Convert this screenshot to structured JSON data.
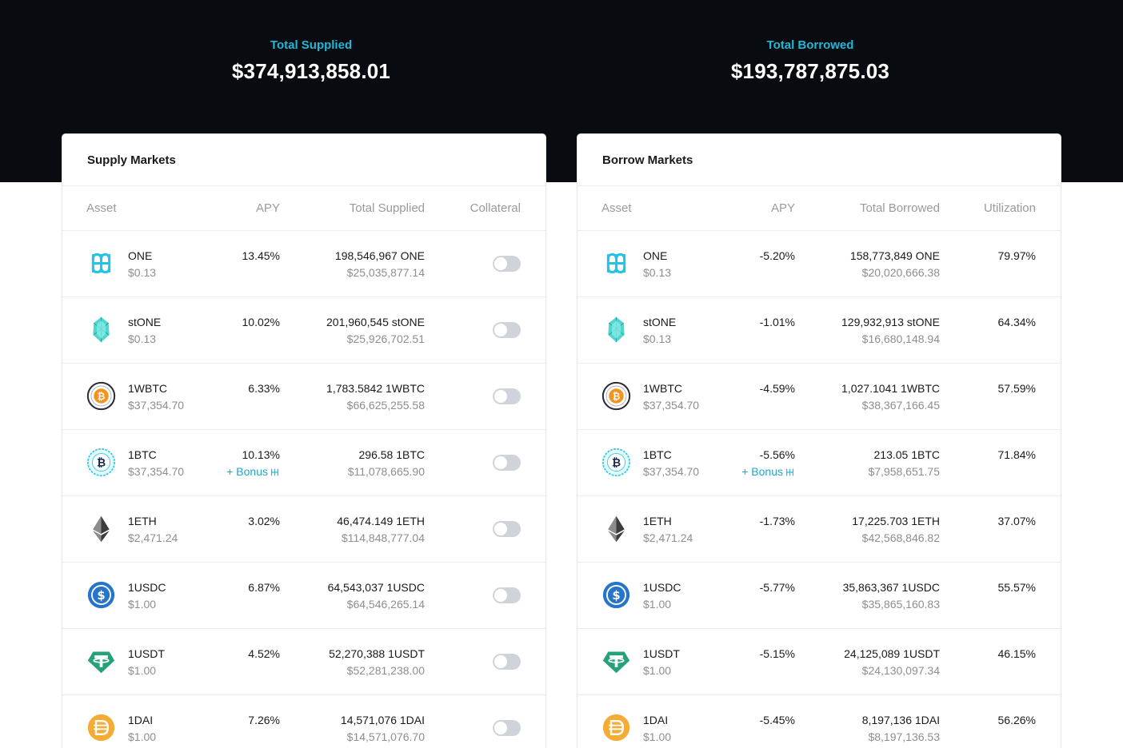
{
  "header": {
    "total_supplied_label": "Total Supplied",
    "total_supplied_value": "$374,913,858.01",
    "total_borrowed_label": "Total Borrowed",
    "total_borrowed_value": "$193,787,875.03"
  },
  "supply": {
    "title": "Supply Markets",
    "columns": [
      "Asset",
      "APY",
      "Total Supplied",
      "Collateral"
    ],
    "rows": [
      {
        "icon": "one-icon",
        "name": "ONE",
        "price": "$0.13",
        "apy": "13.45%",
        "bonus": "",
        "total": "198,546,967 ONE",
        "total_usd": "$25,035,877.14",
        "collateral": false
      },
      {
        "icon": "stone-icon",
        "name": "stONE",
        "price": "$0.13",
        "apy": "10.02%",
        "bonus": "",
        "total": "201,960,545 stONE",
        "total_usd": "$25,926,702.51",
        "collateral": false
      },
      {
        "icon": "wbtc-icon",
        "name": "1WBTC",
        "price": "$37,354.70",
        "apy": "6.33%",
        "bonus": "",
        "total": "1,783.5842 1WBTC",
        "total_usd": "$66,625,255.58",
        "collateral": false
      },
      {
        "icon": "btc-icon",
        "name": "1BTC",
        "price": "$37,354.70",
        "apy": "10.13%",
        "bonus": "+ Bonus",
        "total": "296.58 1BTC",
        "total_usd": "$11,078,665.90",
        "collateral": false
      },
      {
        "icon": "eth-icon",
        "name": "1ETH",
        "price": "$2,471.24",
        "apy": "3.02%",
        "bonus": "",
        "total": "46,474.149 1ETH",
        "total_usd": "$114,848,777.04",
        "collateral": false
      },
      {
        "icon": "usdc-icon",
        "name": "1USDC",
        "price": "$1.00",
        "apy": "6.87%",
        "bonus": "",
        "total": "64,543,037 1USDC",
        "total_usd": "$64,546,265.14",
        "collateral": false
      },
      {
        "icon": "usdt-icon",
        "name": "1USDT",
        "price": "$1.00",
        "apy": "4.52%",
        "bonus": "",
        "total": "52,270,388 1USDT",
        "total_usd": "$52,281,238.00",
        "collateral": false
      },
      {
        "icon": "dai-icon",
        "name": "1DAI",
        "price": "$1.00",
        "apy": "7.26%",
        "bonus": "",
        "total": "14,571,076 1DAI",
        "total_usd": "$14,571,076.70",
        "collateral": false
      }
    ]
  },
  "borrow": {
    "title": "Borrow Markets",
    "columns": [
      "Asset",
      "APY",
      "Total Borrowed",
      "Utilization"
    ],
    "rows": [
      {
        "icon": "one-icon",
        "name": "ONE",
        "price": "$0.13",
        "apy": "-5.20%",
        "bonus": "",
        "total": "158,773,849 ONE",
        "total_usd": "$20,020,666.38",
        "utilization": "79.97%"
      },
      {
        "icon": "stone-icon",
        "name": "stONE",
        "price": "$0.13",
        "apy": "-1.01%",
        "bonus": "",
        "total": "129,932,913 stONE",
        "total_usd": "$16,680,148.94",
        "utilization": "64.34%"
      },
      {
        "icon": "wbtc-icon",
        "name": "1WBTC",
        "price": "$37,354.70",
        "apy": "-4.59%",
        "bonus": "",
        "total": "1,027.1041 1WBTC",
        "total_usd": "$38,367,166.45",
        "utilization": "57.59%"
      },
      {
        "icon": "btc-icon",
        "name": "1BTC",
        "price": "$37,354.70",
        "apy": "-5.56%",
        "bonus": "+ Bonus",
        "total": "213.05 1BTC",
        "total_usd": "$7,958,651.75",
        "utilization": "71.84%"
      },
      {
        "icon": "eth-icon",
        "name": "1ETH",
        "price": "$2,471.24",
        "apy": "-1.73%",
        "bonus": "",
        "total": "17,225.703 1ETH",
        "total_usd": "$42,568,846.82",
        "utilization": "37.07%"
      },
      {
        "icon": "usdc-icon",
        "name": "1USDC",
        "price": "$1.00",
        "apy": "-5.77%",
        "bonus": "",
        "total": "35,863,367 1USDC",
        "total_usd": "$35,865,160.83",
        "utilization": "55.57%"
      },
      {
        "icon": "usdt-icon",
        "name": "1USDT",
        "price": "$1.00",
        "apy": "-5.15%",
        "bonus": "",
        "total": "24,125,089 1USDT",
        "total_usd": "$24,130,097.34",
        "utilization": "46.15%"
      },
      {
        "icon": "dai-icon",
        "name": "1DAI",
        "price": "$1.00",
        "apy": "-5.45%",
        "bonus": "",
        "total": "8,197,136 1DAI",
        "total_usd": "$8,197,136.53",
        "utilization": "56.26%"
      }
    ]
  },
  "colors": {
    "hero_bg": "#080b10",
    "accent": "#1fb8d9",
    "toggle_off": "#cfd4da"
  }
}
